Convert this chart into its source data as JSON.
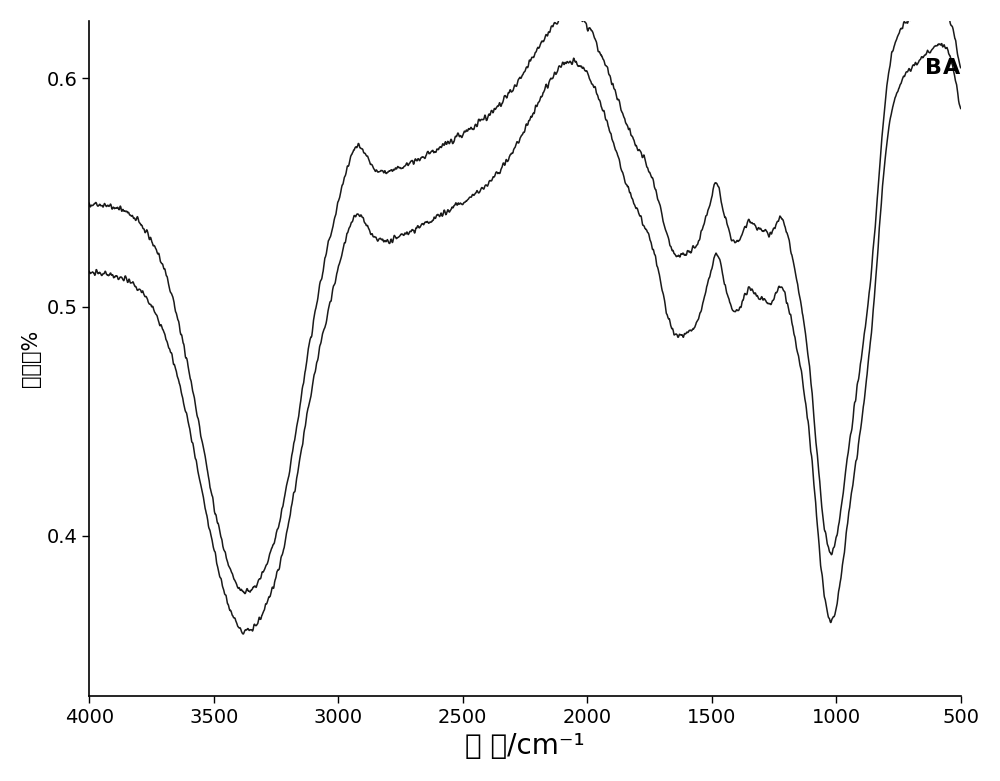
{
  "title": "",
  "xlabel": "波 数/cm⁻¹",
  "ylabel": "透射率%",
  "xlim": [
    4000,
    500
  ],
  "ylim": [
    0.33,
    0.625
  ],
  "yticks": [
    0.4,
    0.5,
    0.6
  ],
  "xticks": [
    4000,
    3500,
    3000,
    2500,
    2000,
    1500,
    1000,
    500
  ],
  "label_A": "A",
  "label_B": "B",
  "line_color": "#1a1a1a",
  "background_color": "#ffffff",
  "xlabel_fontsize": 20,
  "ylabel_fontsize": 15,
  "tick_fontsize": 14,
  "annotation_fontsize": 16
}
